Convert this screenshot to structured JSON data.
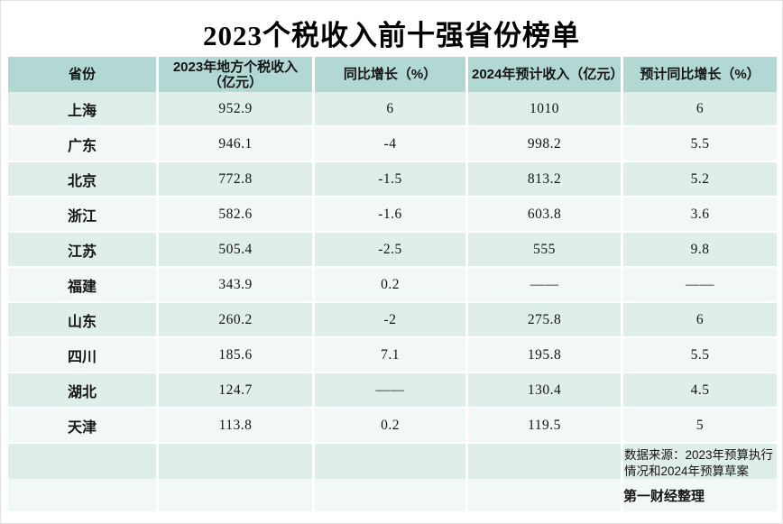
{
  "title": "2023个税收入前十强省份榜单",
  "colors": {
    "header_bg": "#b2d8d4",
    "row_odd_bg": "#dfeeeb",
    "row_even_bg": "#f1f8f7",
    "text": "#141414",
    "page_bg": "#ffffff"
  },
  "chart_data": {
    "type": "table",
    "title": "2023个税收入前十强省份榜单",
    "columns": [
      "省份",
      "2023年地方个税收入（亿元）",
      "同比增长（%）",
      "2024年预计收入（亿元）",
      "预计同比增长（%）"
    ],
    "rows": [
      [
        "上海",
        "952.9",
        "6",
        "1010",
        "6"
      ],
      [
        "广东",
        "946.1",
        "-4",
        "998.2",
        "5.5"
      ],
      [
        "北京",
        "772.8",
        "-1.5",
        "813.2",
        "5.2"
      ],
      [
        "浙江",
        "582.6",
        "-1.6",
        "603.8",
        "3.6"
      ],
      [
        "江苏",
        "505.4",
        "-2.5",
        "555",
        "9.8"
      ],
      [
        "福建",
        "343.9",
        "0.2",
        "——",
        "——"
      ],
      [
        "山东",
        "260.2",
        "-2",
        "275.8",
        "6"
      ],
      [
        "四川",
        "185.6",
        "7.1",
        "195.8",
        "5.5"
      ],
      [
        "湖北",
        "124.7",
        "——",
        "130.4",
        "4.5"
      ],
      [
        "天津",
        "113.8",
        "0.2",
        "119.5",
        "5"
      ]
    ]
  },
  "table": {
    "headers": [
      "省份",
      "2023年地方个税收入（亿元）",
      "同比增长（%）",
      "2024年预计收入（亿元）",
      "预计同比增长（%）"
    ],
    "rows": [
      [
        "上海",
        "952.9",
        "6",
        "1010",
        "6"
      ],
      [
        "广东",
        "946.1",
        "-4",
        "998.2",
        "5.5"
      ],
      [
        "北京",
        "772.8",
        "-1.5",
        "813.2",
        "5.2"
      ],
      [
        "浙江",
        "582.6",
        "-1.6",
        "603.8",
        "3.6"
      ],
      [
        "江苏",
        "505.4",
        "-2.5",
        "555",
        "9.8"
      ],
      [
        "福建",
        "343.9",
        "0.2",
        "——",
        "——"
      ],
      [
        "山东",
        "260.2",
        "-2",
        "275.8",
        "6"
      ],
      [
        "四川",
        "185.6",
        "7.1",
        "195.8",
        "5.5"
      ],
      [
        "湖北",
        "124.7",
        "——",
        "130.4",
        "4.5"
      ],
      [
        "天津",
        "113.8",
        "0.2",
        "119.5",
        "5"
      ]
    ],
    "source_note": "数据来源：2023年预算执行情况和2024年预算草案",
    "credit": "第一财经整理"
  }
}
